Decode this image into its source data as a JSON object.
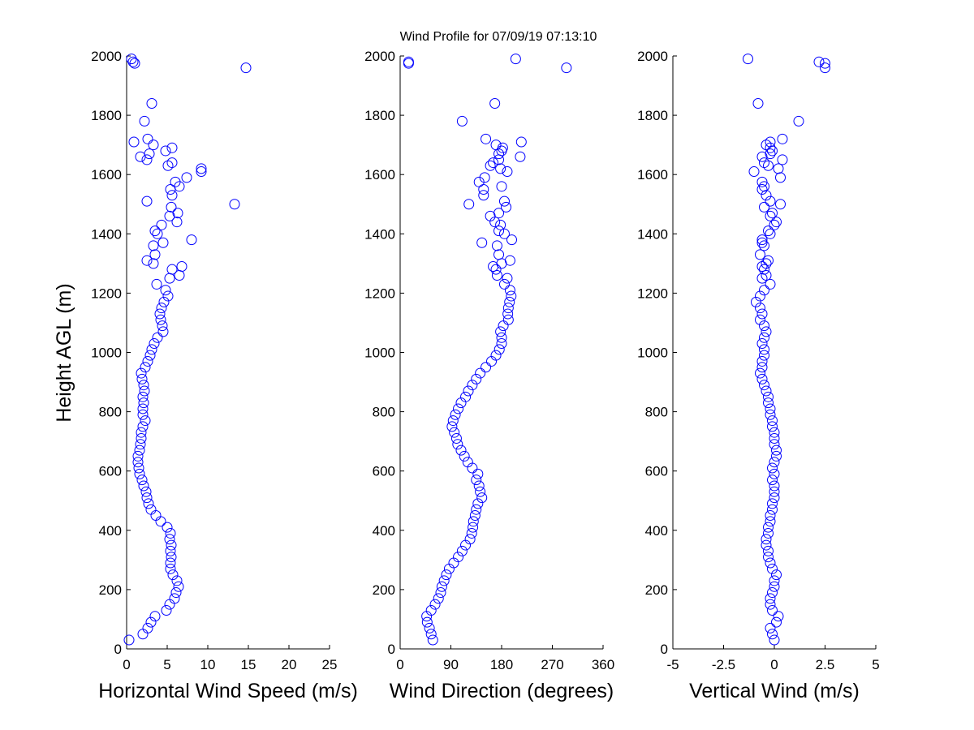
{
  "title": "Wind Profile for  07/09/19 07:13:10",
  "ylabel": "Height AGL (m)",
  "marker_color": "#0000ff",
  "chart_data": {
    "type": "scatter",
    "title": "Wind Profile for  07/09/19 07:13:10",
    "shared_y": {
      "label": "Height AGL (m)",
      "ylim": [
        0,
        2000
      ],
      "ticks": [
        0,
        200,
        400,
        600,
        800,
        1000,
        1200,
        1400,
        1600,
        1800,
        2000
      ],
      "values": [
        30,
        50,
        70,
        90,
        110,
        130,
        150,
        170,
        190,
        210,
        230,
        250,
        270,
        290,
        310,
        330,
        350,
        370,
        390,
        410,
        430,
        450,
        470,
        490,
        510,
        530,
        550,
        570,
        590,
        610,
        630,
        650,
        670,
        690,
        710,
        730,
        750,
        770,
        790,
        810,
        830,
        850,
        870,
        890,
        910,
        930,
        950,
        970,
        990,
        1010,
        1030,
        1050,
        1070,
        1090,
        1110,
        1130,
        1150,
        1170,
        1190,
        1210,
        1230,
        1250,
        1260,
        1280,
        1290,
        1300,
        1310,
        1330,
        1360,
        1370,
        1380,
        1400,
        1410,
        1430,
        1440,
        1460,
        1470,
        1490,
        1500,
        1510,
        1530,
        1550,
        1560,
        1575,
        1590,
        1610,
        1620,
        1630,
        1640,
        1650,
        1660,
        1670,
        1680,
        1690,
        1700,
        1710,
        1720,
        1780,
        1840,
        1960,
        1975,
        1980,
        1990
      ]
    },
    "panels": [
      {
        "xlabel": "Horizontal Wind Speed (m/s)",
        "xlim": [
          0,
          25
        ],
        "ticks": [
          0,
          5,
          10,
          15,
          20,
          25
        ],
        "tick_labels": [
          "0",
          "5",
          "10",
          "15",
          "20",
          "25"
        ],
        "x": [
          0.3,
          2.0,
          2.6,
          3.0,
          3.5,
          4.9,
          5.3,
          5.9,
          6.1,
          6.4,
          6.2,
          5.7,
          5.4,
          5.4,
          5.5,
          5.4,
          5.5,
          5.3,
          5.4,
          5.0,
          4.2,
          3.6,
          3.0,
          2.7,
          2.5,
          2.4,
          2.1,
          1.9,
          1.6,
          1.5,
          1.4,
          1.4,
          1.6,
          1.7,
          1.8,
          1.8,
          2.0,
          2.3,
          2.0,
          2.0,
          2.1,
          2.0,
          2.2,
          2.1,
          1.9,
          1.8,
          2.3,
          2.6,
          2.9,
          3.1,
          3.4,
          3.8,
          4.5,
          4.4,
          4.2,
          4.1,
          4.3,
          4.6,
          5.1,
          4.8,
          3.7,
          5.3,
          6.5,
          5.6,
          6.8,
          3.3,
          2.5,
          3.5,
          3.3,
          4.5,
          8.0,
          3.8,
          3.5,
          4.3,
          6.2,
          5.3,
          6.3,
          5.5,
          13.3,
          2.5,
          5.6,
          5.4,
          6.5,
          6.0,
          7.4,
          9.2,
          9.2,
          5.1,
          5.6,
          2.5,
          1.7,
          2.8,
          4.8,
          5.6,
          3.3,
          0.9,
          2.6,
          2.2,
          3.1,
          14.7,
          1.0,
          0.8,
          0.6
        ]
      },
      {
        "xlabel": "Wind Direction (degrees)",
        "xlim": [
          0,
          360
        ],
        "ticks": [
          0,
          90,
          180,
          270,
          360
        ],
        "tick_labels": [
          "0",
          "90",
          "180",
          "270",
          "360"
        ],
        "x": [
          58,
          55,
          52,
          48,
          47,
          55,
          62,
          68,
          72,
          74,
          78,
          82,
          87,
          95,
          103,
          110,
          116,
          124,
          127,
          129,
          130,
          133,
          135,
          138,
          145,
          142,
          140,
          135,
          138,
          128,
          120,
          114,
          108,
          102,
          100,
          96,
          92,
          94,
          98,
          103,
          108,
          116,
          121,
          128,
          135,
          142,
          152,
          162,
          170,
          176,
          180,
          180,
          178,
          183,
          192,
          191,
          192,
          194,
          197,
          195,
          185,
          190,
          172,
          170,
          165,
          180,
          195,
          175,
          172,
          145,
          198,
          185,
          175,
          178,
          168,
          160,
          175,
          188,
          122,
          185,
          148,
          148,
          180,
          140,
          150,
          190,
          178,
          160,
          165,
          175,
          213,
          175,
          180,
          182,
          170,
          215,
          152,
          110,
          168,
          295,
          15,
          15,
          205
        ]
      },
      {
        "xlabel": "Vertical Wind (m/s)",
        "xlim": [
          -5,
          5
        ],
        "ticks": [
          -5,
          -2.5,
          0,
          2.5,
          5
        ],
        "tick_labels": [
          "-5",
          "-2.5",
          "0",
          "2.5",
          "5"
        ],
        "x": [
          0.0,
          -0.1,
          -0.2,
          0.1,
          0.2,
          -0.1,
          -0.2,
          -0.2,
          -0.1,
          0.0,
          0.0,
          0.1,
          -0.1,
          -0.2,
          -0.3,
          -0.3,
          -0.4,
          -0.4,
          -0.3,
          -0.3,
          -0.2,
          -0.2,
          -0.1,
          -0.1,
          0.0,
          0.0,
          0.0,
          -0.1,
          0.0,
          -0.1,
          0.0,
          0.1,
          0.1,
          0.0,
          0.0,
          0.0,
          -0.1,
          -0.1,
          -0.2,
          -0.2,
          -0.3,
          -0.3,
          -0.4,
          -0.5,
          -0.6,
          -0.7,
          -0.6,
          -0.6,
          -0.5,
          -0.5,
          -0.6,
          -0.5,
          -0.4,
          -0.5,
          -0.7,
          -0.6,
          -0.7,
          -0.9,
          -0.7,
          -0.5,
          -0.2,
          -0.6,
          -0.4,
          -0.5,
          -0.6,
          -0.4,
          -0.3,
          -0.7,
          -0.5,
          -0.6,
          -0.6,
          -0.2,
          -0.3,
          0.0,
          0.1,
          -0.2,
          -0.1,
          -0.5,
          0.3,
          -0.2,
          -0.4,
          -0.6,
          -0.5,
          -0.6,
          0.3,
          -1.0,
          0.2,
          -0.3,
          -0.5,
          0.4,
          -0.6,
          -0.2,
          -0.1,
          -0.2,
          -0.4,
          -0.2,
          0.4,
          1.2,
          -0.8,
          2.5,
          2.5,
          2.2,
          -1.3
        ]
      }
    ],
    "marker": "open-circle",
    "grid": false
  }
}
